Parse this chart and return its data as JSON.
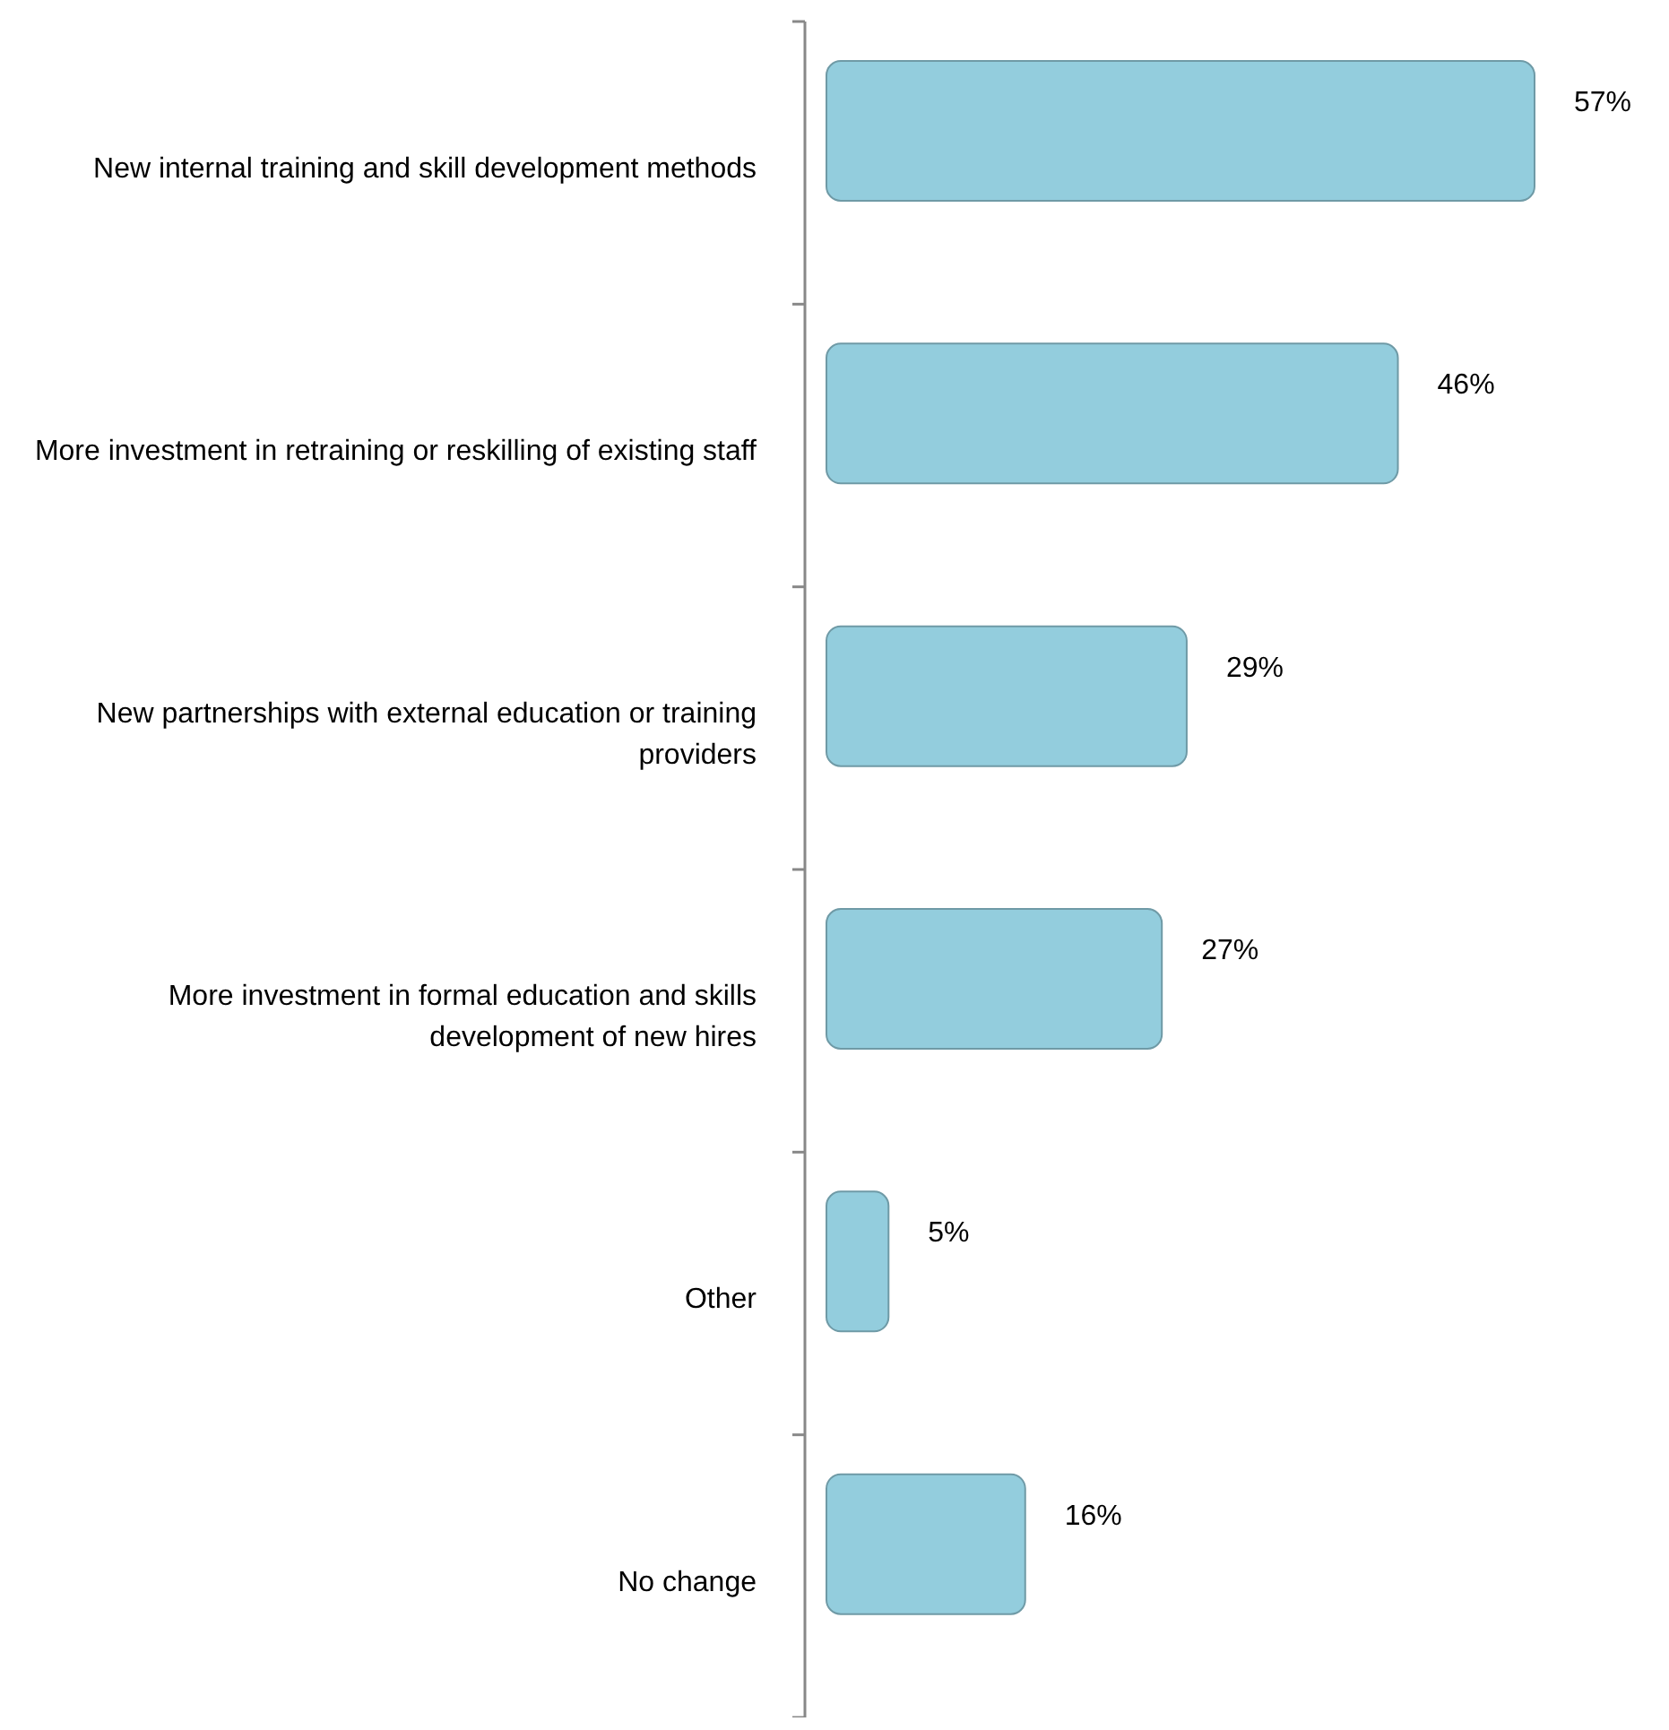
{
  "chart_data": {
    "type": "bar",
    "orientation": "horizontal",
    "categories": [
      "New internal training and skill development methods",
      "More investment in retraining or reskilling of existing staff",
      "New partnerships with external education or training providers",
      "More investment in formal education and skills development of new hires",
      "Other",
      "No change"
    ],
    "values": [
      57,
      46,
      29,
      27,
      5,
      16
    ],
    "value_labels": [
      "57%",
      "46%",
      "29%",
      "27%",
      "5%",
      "16%"
    ],
    "color": "#93cddd"
  }
}
